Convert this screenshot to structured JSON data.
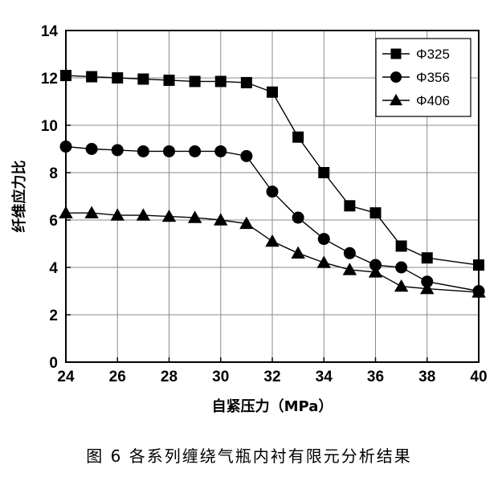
{
  "caption": "图 6   各系列缠绕气瓶内衬有限元分析结果",
  "chart_data": {
    "type": "line",
    "title": "",
    "xlabel": "自紧压力（MPa）",
    "ylabel": "纤维应力比",
    "xlim": [
      24,
      40
    ],
    "ylim": [
      0,
      14
    ],
    "xticks": [
      24,
      26,
      28,
      30,
      32,
      34,
      36,
      38,
      40
    ],
    "yticks": [
      0,
      2,
      4,
      6,
      8,
      10,
      12,
      14
    ],
    "grid": true,
    "legend_position": "top-right",
    "series": [
      {
        "name": "Φ325",
        "marker": "square",
        "x": [
          24,
          25,
          26,
          27,
          28,
          29,
          30,
          31,
          32,
          33,
          34,
          35,
          36,
          37,
          38,
          40
        ],
        "y": [
          12.1,
          12.05,
          12.0,
          11.95,
          11.9,
          11.85,
          11.85,
          11.8,
          11.4,
          9.5,
          8.0,
          6.6,
          6.3,
          4.9,
          4.4,
          4.1
        ]
      },
      {
        "name": "Φ356",
        "marker": "circle",
        "x": [
          24,
          25,
          26,
          27,
          28,
          29,
          30,
          31,
          32,
          33,
          34,
          35,
          36,
          37,
          38,
          40
        ],
        "y": [
          9.1,
          9.0,
          8.95,
          8.9,
          8.9,
          8.9,
          8.9,
          8.7,
          7.2,
          6.1,
          5.2,
          4.6,
          4.1,
          4.0,
          3.4,
          3.0
        ]
      },
      {
        "name": "Φ406",
        "marker": "triangle",
        "x": [
          24,
          25,
          26,
          27,
          28,
          29,
          30,
          31,
          32,
          33,
          34,
          35,
          36,
          37,
          38,
          40
        ],
        "y": [
          6.3,
          6.3,
          6.2,
          6.2,
          6.15,
          6.1,
          6.0,
          5.85,
          5.1,
          4.6,
          4.2,
          3.9,
          3.8,
          3.2,
          3.1,
          2.95
        ]
      }
    ]
  }
}
